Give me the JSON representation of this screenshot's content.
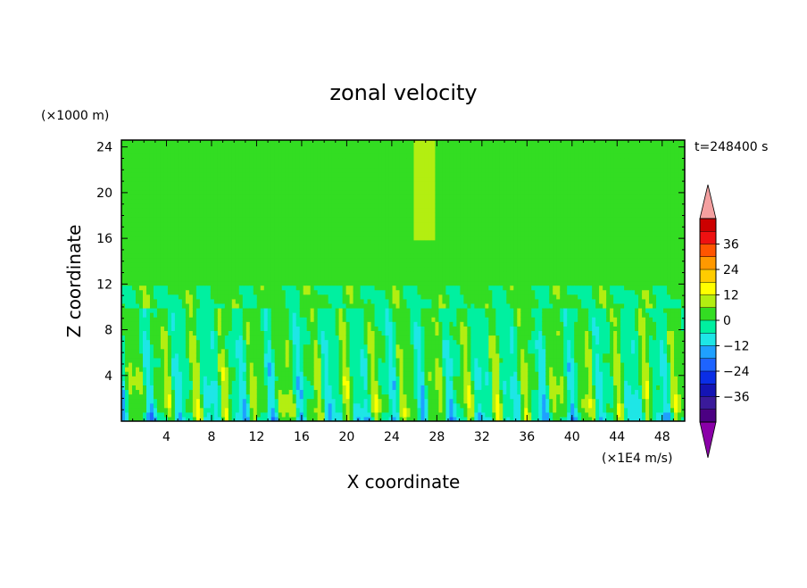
{
  "chart_data": {
    "type": "heatmap",
    "title": "zonal velocity",
    "xlabel": "X coordinate",
    "ylabel": "Z coordinate",
    "y_unit": "(×1000 m)",
    "colorbar_unit": "(×1E4 m/s)",
    "time_label": "t=248400 s",
    "x_ticks": [
      "4",
      "8",
      "12",
      "16",
      "20",
      "24",
      "28",
      "32",
      "36",
      "40",
      "44",
      "48"
    ],
    "y_ticks": [
      "4",
      "8",
      "12",
      "16",
      "20",
      "24"
    ],
    "xlim": [
      0,
      50
    ],
    "ylim": [
      0,
      24.6
    ],
    "colorbar": {
      "tick_labels": [
        "36",
        "24",
        "12",
        "0",
        "−12",
        "−24",
        "−36"
      ],
      "levels": [
        -42,
        -36,
        -30,
        -24,
        -18,
        -12,
        -6,
        0,
        6,
        12,
        18,
        24,
        30,
        36,
        42
      ],
      "colors": [
        "#4b0082",
        "#3a1a9a",
        "#1414b4",
        "#0a2ee6",
        "#1e64ff",
        "#1fa0ff",
        "#1ee6e6",
        "#00f0a0",
        "#33dd22",
        "#b3ee11",
        "#ffff00",
        "#ffcc00",
        "#ff9900",
        "#ff5500",
        "#ee1111",
        "#cc0000"
      ],
      "over_color": "#f4a0a0",
      "under_color": "#8a00a8"
    },
    "field_summary": {
      "upper_band_z": [
        12,
        24.6
      ],
      "upper_values": [
        0,
        6
      ],
      "lower_band_z": [
        0,
        10
      ],
      "lower_values": [
        -18,
        18
      ]
    }
  }
}
